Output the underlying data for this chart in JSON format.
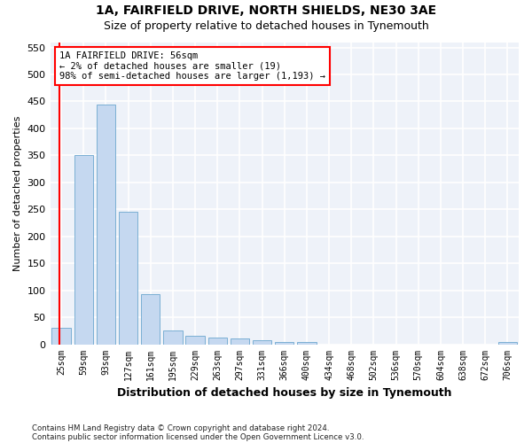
{
  "title": "1A, FAIRFIELD DRIVE, NORTH SHIELDS, NE30 3AE",
  "subtitle": "Size of property relative to detached houses in Tynemouth",
  "xlabel": "Distribution of detached houses by size in Tynemouth",
  "ylabel": "Number of detached properties",
  "bar_color": "#c5d8f0",
  "bar_edge_color": "#7bafd4",
  "background_color": "#eef2f9",
  "grid_color": "#ffffff",
  "categories": [
    "25sqm",
    "59sqm",
    "93sqm",
    "127sqm",
    "161sqm",
    "195sqm",
    "229sqm",
    "263sqm",
    "297sqm",
    "331sqm",
    "366sqm",
    "400sqm",
    "434sqm",
    "468sqm",
    "502sqm",
    "536sqm",
    "570sqm",
    "604sqm",
    "638sqm",
    "672sqm",
    "706sqm"
  ],
  "values": [
    30,
    350,
    445,
    245,
    93,
    25,
    15,
    13,
    10,
    7,
    5,
    4,
    0,
    0,
    0,
    0,
    0,
    0,
    0,
    0,
    5
  ],
  "ylim": [
    0,
    560
  ],
  "yticks": [
    0,
    50,
    100,
    150,
    200,
    250,
    300,
    350,
    400,
    450,
    500,
    550
  ],
  "property_label": "1A FAIRFIELD DRIVE: 56sqm",
  "annotation_line1": "← 2% of detached houses are smaller (19)",
  "annotation_line2": "98% of semi-detached houses are larger (1,193) →",
  "red_line_x": -0.07,
  "footnote1": "Contains HM Land Registry data © Crown copyright and database right 2024.",
  "footnote2": "Contains public sector information licensed under the Open Government Licence v3.0."
}
